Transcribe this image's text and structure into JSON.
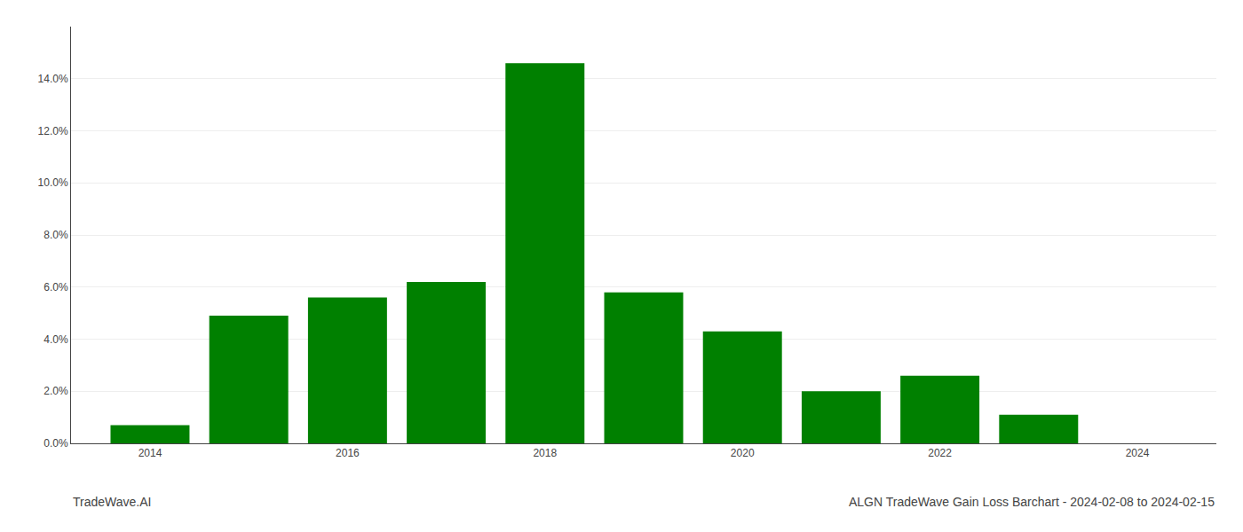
{
  "chart_data": {
    "type": "bar",
    "title": "ALGN TradeWave Gain Loss Barchart - 2024-02-08 to 2024-02-15",
    "annotations": [
      {
        "text": "TradeWave.AI"
      }
    ],
    "x": [
      2014,
      2015,
      2016,
      2017,
      2018,
      2019,
      2020,
      2021,
      2022,
      2023
    ],
    "values": [
      0.007,
      0.049,
      0.056,
      0.062,
      0.146,
      0.058,
      0.043,
      0.02,
      0.026,
      0.011
    ],
    "color": "#008000",
    "xlim": [
      2013.2,
      2024.8
    ],
    "xticks": [
      2014,
      2016,
      2018,
      2020,
      2022,
      2024
    ],
    "ylim": [
      0,
      0.16
    ],
    "yticks": [
      {
        "value": 0.0,
        "label": "0.0%"
      },
      {
        "value": 0.02,
        "label": "2.0%"
      },
      {
        "value": 0.04,
        "label": "4.0%"
      },
      {
        "value": 0.06,
        "label": "6.0%"
      },
      {
        "value": 0.08,
        "label": "8.0%"
      },
      {
        "value": 0.1,
        "label": "10.0%"
      },
      {
        "value": 0.12,
        "label": "12.0%"
      },
      {
        "value": 0.14,
        "label": "14.0%"
      }
    ],
    "grid": true
  }
}
